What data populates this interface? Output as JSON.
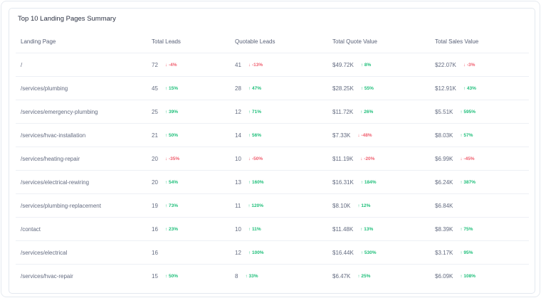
{
  "title": "Top 10 Landing Pages Summary",
  "colors": {
    "up": "#1fbf7a",
    "down": "#f06070"
  },
  "columns": [
    "Landing Page",
    "Total Leads",
    "Quotable Leads",
    "Total Quote Value",
    "Total Sales Value"
  ],
  "rows": [
    {
      "page": "/",
      "leads": "72",
      "leads_delta": "↓ -4%",
      "qleads": "41",
      "qleads_delta": "↓ -13%",
      "quote": "$49.72K",
      "quote_delta": "↑ 8%",
      "sales": "$22.07K",
      "sales_delta": "↓ -3%"
    },
    {
      "page": "/services/plumbing",
      "leads": "45",
      "leads_delta": "↑ 15%",
      "qleads": "28",
      "qleads_delta": "↑ 47%",
      "quote": "$28.25K",
      "quote_delta": "↑ 55%",
      "sales": "$12.91K",
      "sales_delta": "↑ 43%"
    },
    {
      "page": "/services/emergency-plumbing",
      "leads": "25",
      "leads_delta": "↑ 39%",
      "qleads": "12",
      "qleads_delta": "↑ 71%",
      "quote": "$11.72K",
      "quote_delta": "↑ 26%",
      "sales": "$5.51K",
      "sales_delta": "↑ 595%"
    },
    {
      "page": "/services/hvac-installation",
      "leads": "21",
      "leads_delta": "↑ 50%",
      "qleads": "14",
      "qleads_delta": "↑ 56%",
      "quote": "$7.33K",
      "quote_delta": "↓ -48%",
      "sales": "$8.03K",
      "sales_delta": "↑ 57%"
    },
    {
      "page": "/services/heating-repair",
      "leads": "20",
      "leads_delta": "↓ -35%",
      "qleads": "10",
      "qleads_delta": "↓ -50%",
      "quote": "$11.19K",
      "quote_delta": "↓ -20%",
      "sales": "$6.99K",
      "sales_delta": "↓ -45%"
    },
    {
      "page": "/services/electrical-rewiring",
      "leads": "20",
      "leads_delta": "↑ 54%",
      "qleads": "13",
      "qleads_delta": "↑ 160%",
      "quote": "$16.31K",
      "quote_delta": "↑ 184%",
      "sales": "$6.24K",
      "sales_delta": "↑ 387%"
    },
    {
      "page": "/services/plumbing-replacement",
      "leads": "19",
      "leads_delta": "↑ 73%",
      "qleads": "11",
      "qleads_delta": "↑ 120%",
      "quote": "$8.10K",
      "quote_delta": "↑ 12%",
      "sales": "$6.84K",
      "sales_delta": ""
    },
    {
      "page": "/contact",
      "leads": "16",
      "leads_delta": "↑ 23%",
      "qleads": "10",
      "qleads_delta": "↑ 11%",
      "quote": "$11.48K",
      "quote_delta": "↑ 13%",
      "sales": "$8.39K",
      "sales_delta": "↑ 75%"
    },
    {
      "page": "/services/electrical",
      "leads": "16",
      "leads_delta": "",
      "qleads": "12",
      "qleads_delta": "↑ 100%",
      "quote": "$16.44K",
      "quote_delta": "↑ 530%",
      "sales": "$3.17K",
      "sales_delta": "↑ 95%"
    },
    {
      "page": "/services/hvac-repair",
      "leads": "15",
      "leads_delta": "↑ 50%",
      "qleads": "8",
      "qleads_delta": "↑ 33%",
      "quote": "$6.47K",
      "quote_delta": "↑ 25%",
      "sales": "$6.09K",
      "sales_delta": "↑ 108%"
    }
  ]
}
